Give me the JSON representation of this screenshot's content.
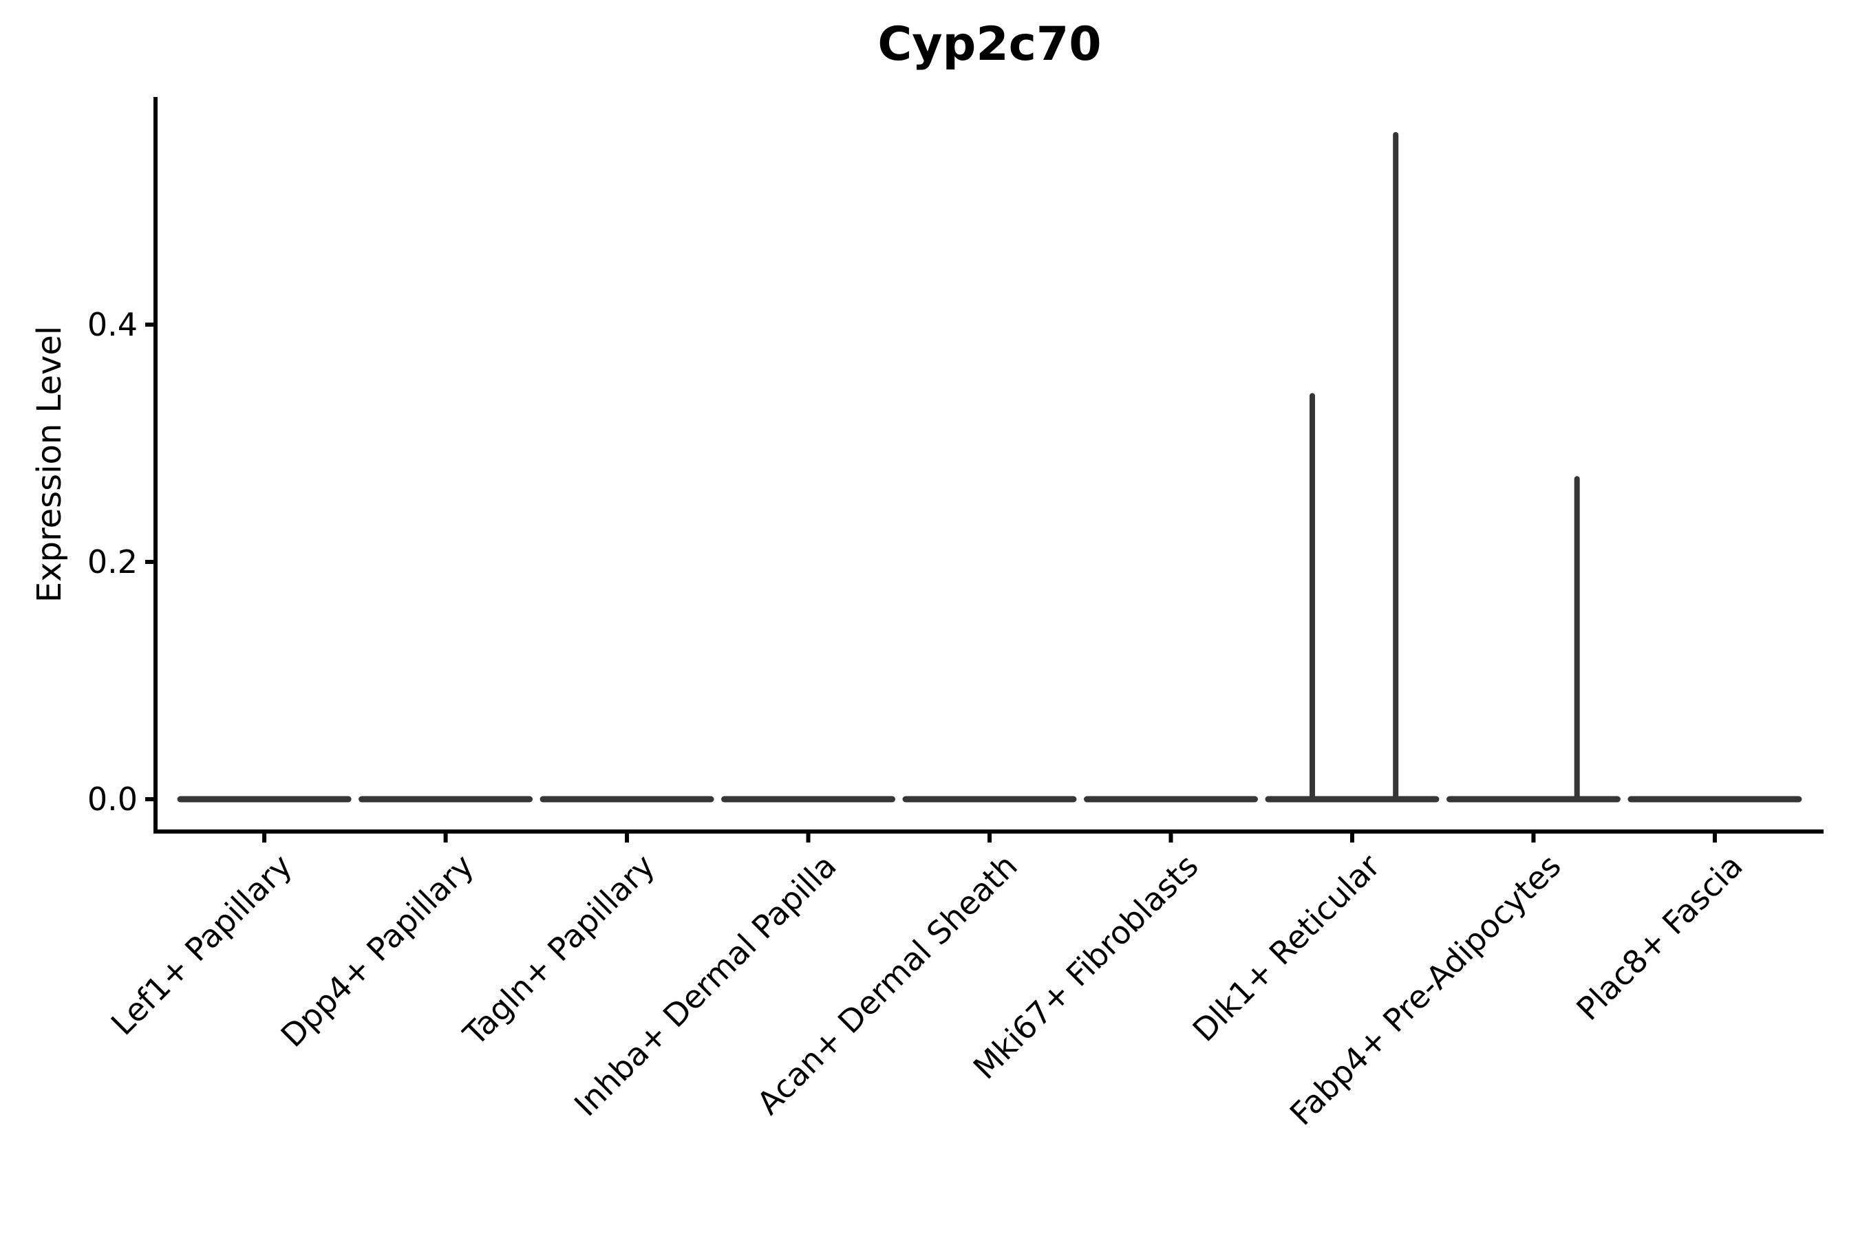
{
  "title": "Cyp2c70",
  "chart_data": {
    "type": "violin",
    "title": "Cyp2c70",
    "ylabel": "Expression Level",
    "xlabel": "",
    "categories": [
      "Lef1+ Papillary",
      "Dpp4+ Papillary",
      "Tagln+ Papillary",
      "Inhba+ Dermal Papilla",
      "Acan+ Dermal Sheath",
      "Mki67+ Fibroblasts",
      "Dlk1+ Reticular",
      "Fabp4+ Pre-Adipocytes",
      "Plac8+ Fascia"
    ],
    "yticks": [
      {
        "value": 0.0,
        "label": "0.0"
      },
      {
        "value": 0.2,
        "label": "0.2"
      },
      {
        "value": 0.4,
        "label": "0.4"
      }
    ],
    "ylim": [
      -0.027,
      0.592
    ],
    "grid": false,
    "legend_position": "none",
    "violins": [
      {
        "category": "Lef1+ Papillary",
        "baseline_value": 0.0,
        "spikes": []
      },
      {
        "category": "Dpp4+ Papillary",
        "baseline_value": 0.0,
        "spikes": []
      },
      {
        "category": "Tagln+ Papillary",
        "baseline_value": 0.0,
        "spikes": []
      },
      {
        "category": "Inhba+ Dermal Papilla",
        "baseline_value": 0.0,
        "spikes": []
      },
      {
        "category": "Acan+ Dermal Sheath",
        "baseline_value": 0.0,
        "spikes": []
      },
      {
        "category": "Mki67+ Fibroblasts",
        "baseline_value": 0.0,
        "spikes": []
      },
      {
        "category": "Dlk1+ Reticular",
        "baseline_value": 0.0,
        "spikes": [
          {
            "value": 0.34,
            "offset_frac": -0.22
          },
          {
            "value": 0.56,
            "offset_frac": 0.24
          }
        ]
      },
      {
        "category": "Fabp4+ Pre-Adipocytes",
        "baseline_value": 0.0,
        "spikes": [
          {
            "value": 0.27,
            "offset_frac": 0.24
          }
        ]
      },
      {
        "category": "Plac8+ Fascia",
        "baseline_value": 0.0,
        "spikes": []
      }
    ],
    "colors": {
      "violin": "#363636",
      "axis": "#000000",
      "text": "#000000"
    }
  }
}
